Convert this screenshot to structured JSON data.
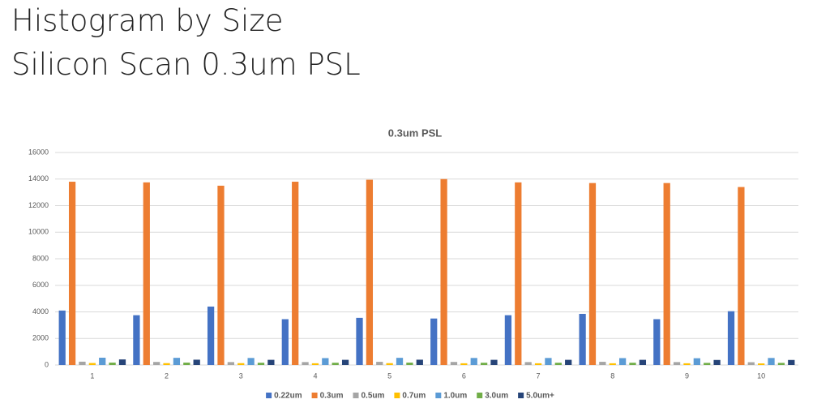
{
  "header": {
    "title_lines": [
      "Histogram by Size",
      "Silicon Scan 0.3um PSL"
    ]
  },
  "chart_data": {
    "type": "bar",
    "title": "0.3um PSL",
    "categories": [
      "1",
      "2",
      "3",
      "4",
      "5",
      "6",
      "7",
      "8",
      "9",
      "10"
    ],
    "series": [
      {
        "name": "0.22um",
        "color": "#4472c4",
        "values": [
          4100,
          3750,
          4400,
          3450,
          3550,
          3500,
          3750,
          3850,
          3450,
          4050
        ]
      },
      {
        "name": "0.3um",
        "color": "#ed7d31",
        "values": [
          13800,
          13750,
          13500,
          13800,
          13950,
          14000,
          13750,
          13700,
          13700,
          13400
        ]
      },
      {
        "name": "0.5um",
        "color": "#a5a5a5",
        "values": [
          250,
          230,
          220,
          220,
          240,
          230,
          220,
          240,
          220,
          210
        ]
      },
      {
        "name": "0.7um",
        "color": "#ffc000",
        "values": [
          150,
          140,
          140,
          130,
          140,
          130,
          130,
          130,
          130,
          120
        ]
      },
      {
        "name": "1.0um",
        "color": "#5b9bd5",
        "values": [
          550,
          540,
          530,
          520,
          540,
          530,
          530,
          520,
          510,
          530
        ]
      },
      {
        "name": "3.0um",
        "color": "#70ad47",
        "values": [
          180,
          180,
          170,
          170,
          180,
          170,
          170,
          170,
          160,
          160
        ]
      },
      {
        "name": "5.0um+",
        "color": "#264478",
        "values": [
          420,
          400,
          390,
          390,
          400,
          390,
          390,
          390,
          380,
          380
        ]
      }
    ],
    "ylim": [
      0,
      16000
    ],
    "yticks": [
      0,
      2000,
      4000,
      6000,
      8000,
      10000,
      12000,
      14000,
      16000
    ],
    "grid": true,
    "legend": "bottom"
  }
}
